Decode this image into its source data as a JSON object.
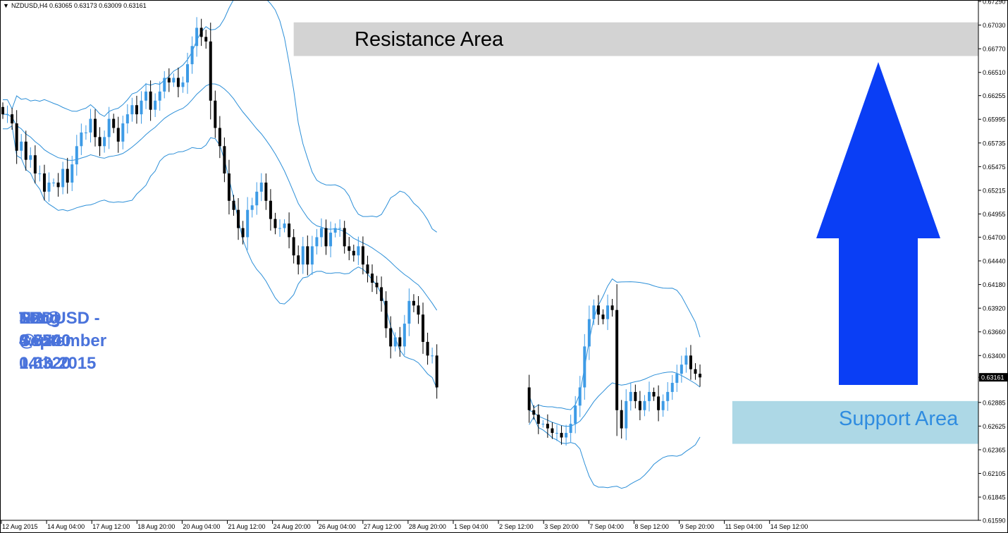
{
  "header": {
    "arrow": "▼",
    "text": "NZDUSD,H4  0.63065 0.63173 0.63009 0.63161"
  },
  "annotation": {
    "lines": [
      "NZDUSD - September 14th 2015",
      "Long @ 0.6320",
      "TP @ 0.6700",
      "SL @ 0.6240",
      "RR: 4.75"
    ]
  },
  "colors": {
    "bull": "#3d9be6",
    "bear": "#000000",
    "band": "#2c8fd8",
    "resistance_fill": "#d3d3d3",
    "support_fill": "#add8e6",
    "arrow": "#0a3ef5",
    "annotation": "#4a73db",
    "support_label": "#2f8ce0"
  },
  "chart_data": {
    "type": "candlestick",
    "symbol": "NZDUSD",
    "timeframe": "H4",
    "ylim": [
      0.6159,
      0.6729
    ],
    "last_price_label": "0.63161",
    "y_ticks": [
      "0.67290",
      "0.67030",
      "0.66770",
      "0.66510",
      "0.66255",
      "0.65995",
      "0.65735",
      "0.65475",
      "0.65215",
      "0.64955",
      "0.64700",
      "0.64440",
      "0.64180",
      "0.63920",
      "0.63660",
      "0.63400",
      "0.63161",
      "0.62885",
      "0.62625",
      "0.62365",
      "0.62105",
      "0.61845",
      "0.61590"
    ],
    "x_ticks": [
      "12 Aug 2015",
      "14 Aug 04:00",
      "17 Aug 12:00",
      "18 Aug 20:00",
      "20 Aug 04:00",
      "21 Aug 12:00",
      "24 Aug 20:00",
      "26 Aug 04:00",
      "27 Aug 12:00",
      "28 Aug 20:00",
      "1 Sep 04:00",
      "2 Sep 12:00",
      "3 Sep 20:00",
      "7 Sep 04:00",
      "8 Sep 12:00",
      "9 Sep 20:00",
      "11 Sep 04:00",
      "14 Sep 12:00"
    ],
    "zones": [
      {
        "name": "Resistance Area",
        "x_from_bar": 63,
        "low": 0.6669,
        "high": 0.6706
      },
      {
        "name": "Support Area",
        "x_from_bar": 139,
        "low": 0.6243,
        "high": 0.629
      }
    ],
    "signal": {
      "direction": "up"
    },
    "close": [
      0.6605,
      0.6605,
      0.6595,
      0.6565,
      0.6575,
      0.6555,
      0.656,
      0.654,
      0.654,
      0.652,
      0.653,
      0.653,
      0.6525,
      0.6545,
      0.653,
      0.655,
      0.657,
      0.6585,
      0.6585,
      0.66,
      0.658,
      0.657,
      0.658,
      0.66,
      0.659,
      0.6575,
      0.6595,
      0.6605,
      0.6615,
      0.6605,
      0.662,
      0.663,
      0.661,
      0.662,
      0.663,
      0.6645,
      0.664,
      0.6645,
      0.6635,
      0.664,
      0.666,
      0.668,
      0.67,
      0.669,
      0.6685,
      0.662,
      0.659,
      0.657,
      0.654,
      0.651,
      0.65,
      0.648,
      0.647,
      0.65,
      0.6505,
      0.652,
      0.653,
      0.651,
      0.649,
      0.648,
      0.648,
      0.6485,
      0.647,
      0.645,
      0.644,
      0.646,
      0.644,
      0.646,
      0.647,
      0.648,
      0.646,
      0.6475,
      0.648,
      0.648,
      0.646,
      0.6455,
      0.645,
      0.646,
      0.644,
      0.643,
      0.642,
      0.6415,
      0.64,
      0.637,
      0.635,
      0.636,
      0.635,
      0.6375,
      0.64,
      0.6395,
      0.6385,
      0.6355,
      0.634,
      0.634,
      0.6305,
      0.628,
      0.6275,
      0.6265,
      0.6265,
      0.626,
      0.6255,
      0.6255,
      0.625,
      0.6255,
      0.6265,
      0.6285,
      0.6305,
      0.635,
      0.638,
      0.6395,
      0.6385,
      0.638,
      0.6395,
      0.639,
      0.628,
      0.626,
      0.629,
      0.63,
      0.629,
      0.628,
      0.629,
      0.63,
      0.6295,
      0.628,
      0.629,
      0.63,
      0.631,
      0.632,
      0.633,
      0.634,
      0.6325,
      0.632,
      0.6316
    ]
  }
}
